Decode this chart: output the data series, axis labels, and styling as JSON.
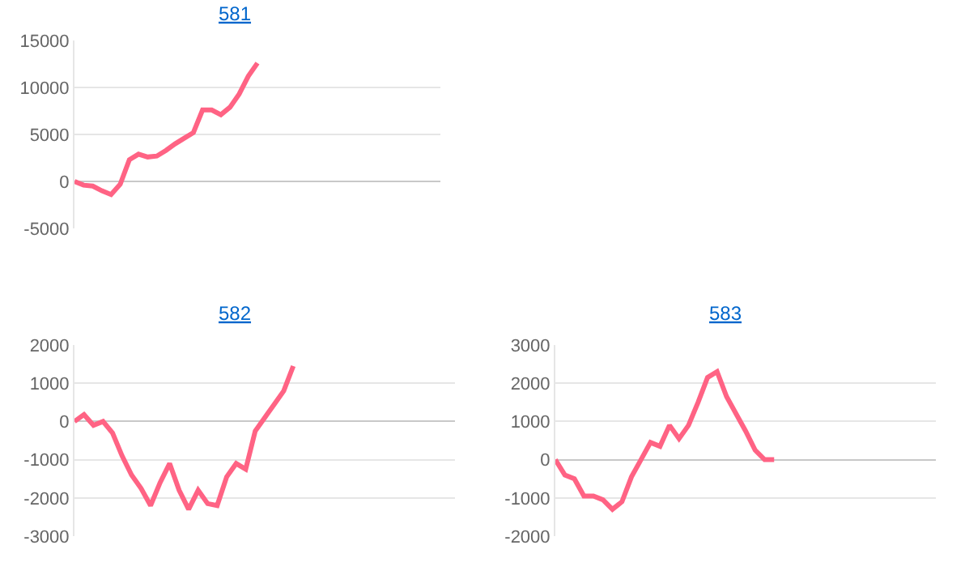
{
  "chart_data": [
    {
      "type": "line",
      "title": "581",
      "categories": [
        null,
        null,
        null,
        null,
        null,
        null,
        null,
        null,
        null,
        null,
        null,
        null,
        null,
        null,
        null,
        null,
        null,
        null,
        null,
        null,
        null,
        null,
        null,
        null,
        null,
        null,
        null,
        null,
        null,
        null,
        null,
        null,
        null,
        null,
        null,
        null,
        null,
        null,
        null,
        null,
        null
      ],
      "series": [
        {
          "color": "#ff6384",
          "values": [
            0,
            -400,
            -500,
            -1000,
            -1400,
            -300,
            2300,
            2900,
            2600,
            2700,
            3300,
            4000,
            4600,
            5200,
            7600,
            7600,
            7100,
            7900,
            9300,
            11200,
            12600,
            null,
            null,
            null,
            null,
            null,
            null,
            null,
            null,
            null,
            null,
            null,
            null,
            null,
            null,
            null,
            null,
            null,
            null,
            null,
            null
          ]
        }
      ],
      "ylim": [
        -5000,
        15000
      ],
      "yticks": [
        -5000,
        0,
        5000,
        10000,
        15000
      ],
      "grid": "y",
      "marker": "none",
      "line_style": "solid",
      "tick_labels": "y"
    },
    {
      "type": "line",
      "title": "582",
      "categories": [
        null,
        null,
        null,
        null,
        null,
        null,
        null,
        null,
        null,
        null,
        null,
        null,
        null,
        null,
        null,
        null,
        null,
        null,
        null,
        null,
        null,
        null,
        null,
        null,
        null,
        null,
        null,
        null,
        null,
        null,
        null,
        null,
        null,
        null,
        null,
        null,
        null,
        null,
        null,
        null,
        null
      ],
      "series": [
        {
          "color": "#ff6384",
          "values": [
            0,
            180,
            -100,
            0,
            -300,
            -900,
            -1400,
            -1750,
            -2200,
            -1600,
            -1100,
            -1800,
            -2300,
            -1800,
            -2150,
            -2200,
            -1450,
            -1100,
            -1250,
            -250,
            100,
            450,
            800,
            1450,
            null,
            null,
            null,
            null,
            null,
            null,
            null,
            null,
            null,
            null,
            null,
            null,
            null,
            null,
            null,
            null,
            null
          ]
        }
      ],
      "ylim": [
        -3000,
        2000
      ],
      "yticks": [
        -3000,
        -2000,
        -1000,
        0,
        1000,
        2000
      ],
      "grid": "y",
      "marker": "none",
      "line_style": "solid",
      "tick_labels": "y"
    },
    {
      "type": "line",
      "title": "583",
      "categories": [
        null,
        null,
        null,
        null,
        null,
        null,
        null,
        null,
        null,
        null,
        null,
        null,
        null,
        null,
        null,
        null,
        null,
        null,
        null,
        null,
        null,
        null,
        null,
        null,
        null,
        null,
        null,
        null,
        null,
        null,
        null,
        null,
        null,
        null,
        null,
        null,
        null,
        null,
        null,
        null,
        null
      ],
      "series": [
        {
          "color": "#ff6384",
          "values": [
            0,
            -400,
            -500,
            -950,
            -950,
            -1050,
            -1300,
            -1100,
            -450,
            0,
            450,
            350,
            900,
            550,
            900,
            1500,
            2150,
            2300,
            1650,
            1200,
            750,
            250,
            0,
            0,
            null,
            null,
            null,
            null,
            null,
            null,
            null,
            null,
            null,
            null,
            null,
            null,
            null,
            null,
            null,
            null,
            null
          ]
        }
      ],
      "ylim": [
        -2000,
        3000
      ],
      "yticks": [
        -2000,
        -1000,
        0,
        1000,
        2000,
        3000
      ],
      "grid": "y",
      "marker": "none",
      "line_style": "solid",
      "tick_labels": "y"
    }
  ]
}
